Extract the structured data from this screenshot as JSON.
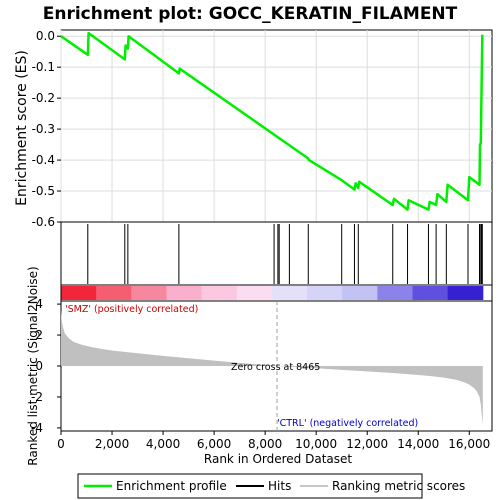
{
  "title": "Enrichment plot: GOCC_KERATIN_FILAMENT",
  "colors": {
    "enrichment_line": "#00ee00",
    "hits": "#000000",
    "metric_fill": "#c0c0c0",
    "positive_label": "#cc0000",
    "negative_label": "#0000cc",
    "zero_cross_line": "#a0a0a0"
  },
  "chart_data": [
    {
      "type": "line",
      "name": "enrichment-profile",
      "ylabel": "Enrichment score (ES)",
      "xlim": [
        0,
        16890
      ],
      "ylim": [
        -0.6,
        0.02
      ],
      "yticks": [
        "0.0",
        "-0.1",
        "-0.2",
        "-0.3",
        "-0.4",
        "-0.5",
        "-0.6"
      ],
      "ytick_values": [
        0.0,
        -0.1,
        -0.2,
        -0.3,
        -0.4,
        -0.5,
        -0.6
      ],
      "grid": true,
      "series": [
        {
          "name": "Enrichment profile",
          "x": [
            0,
            1050,
            1080,
            2500,
            2530,
            2620,
            2650,
            4620,
            4650,
            9690,
            9720,
            11000,
            11500,
            11550,
            11650,
            11680,
            13000,
            13050,
            13580,
            13620,
            14400,
            14450,
            14700,
            14750,
            15100,
            15150,
            15950,
            16000,
            16400,
            16420,
            16450,
            16480,
            16510
          ],
          "y": [
            0.0,
            -0.06,
            0.01,
            -0.075,
            -0.03,
            -0.04,
            0.0,
            -0.12,
            -0.105,
            -0.395,
            -0.4,
            -0.465,
            -0.495,
            -0.475,
            -0.49,
            -0.47,
            -0.545,
            -0.525,
            -0.56,
            -0.53,
            -0.56,
            -0.535,
            -0.545,
            -0.51,
            -0.535,
            -0.48,
            -0.53,
            -0.455,
            -0.48,
            -0.35,
            -0.345,
            -0.185,
            0.005
          ]
        }
      ]
    },
    {
      "type": "hits",
      "name": "hits",
      "positions": [
        1050,
        2500,
        2620,
        4620,
        8350,
        8500,
        8550,
        8950,
        9690,
        11000,
        11500,
        11650,
        13000,
        13580,
        14400,
        14700,
        15100,
        15950,
        16400,
        16450,
        16480,
        16510
      ]
    },
    {
      "type": "area",
      "name": "ranked-list-metric",
      "xlabel": "Rank in Ordered Dataset",
      "ylabel": "Ranked list metric (Signal2Noise)",
      "xlim": [
        0,
        16890
      ],
      "ylim": [
        -4.2,
        4.2
      ],
      "xticks": [
        "0",
        "2,000",
        "4,000",
        "6,000",
        "8,000",
        "10,000",
        "12,000",
        "14,000",
        "16,000"
      ],
      "xtick_values": [
        0,
        2000,
        4000,
        6000,
        8000,
        10000,
        12000,
        14000,
        16000
      ],
      "yticks": [
        "4",
        "2",
        "0",
        "-2",
        "-4"
      ],
      "ytick_values": [
        4,
        2,
        0,
        -2,
        -4
      ],
      "x": [
        0,
        30,
        80,
        150,
        300,
        500,
        800,
        1200,
        1600,
        2000,
        3000,
        4000,
        5000,
        6000,
        7000,
        8000,
        8465,
        9000,
        10000,
        11000,
        12000,
        13000,
        14000,
        14500,
        15000,
        15500,
        15800,
        16000,
        16200,
        16300,
        16400,
        16450,
        16500,
        16530
      ],
      "y": [
        3.6,
        2.9,
        2.5,
        2.1,
        1.8,
        1.55,
        1.38,
        1.22,
        1.1,
        1.0,
        0.82,
        0.65,
        0.5,
        0.35,
        0.2,
        0.07,
        0.0,
        -0.05,
        -0.15,
        -0.25,
        -0.35,
        -0.45,
        -0.58,
        -0.65,
        -0.75,
        -0.9,
        -1.05,
        -1.2,
        -1.45,
        -1.65,
        -2.0,
        -2.5,
        -3.3,
        -3.8
      ],
      "zero_cross_label": "Zero cross at 8465",
      "positive_label": "'SMZ' (positively correlated)",
      "negative_label": "'CTRL' (negatively correlated)"
    }
  ],
  "legend": {
    "position": "bottom",
    "items": [
      "Enrichment profile",
      "Hits",
      "Ranking metric scores"
    ]
  }
}
